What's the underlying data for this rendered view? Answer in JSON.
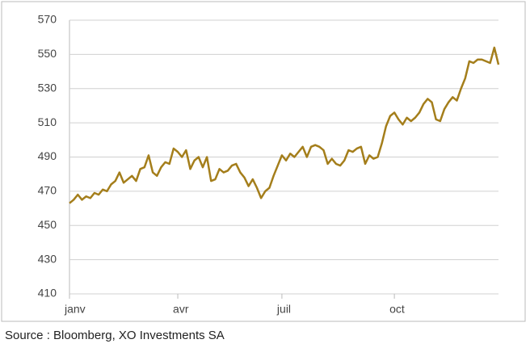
{
  "chart_data": {
    "type": "line",
    "source": "Source : Bloomberg, XO Investments SA",
    "categories": [
      "janv",
      null,
      null,
      null,
      null,
      null,
      null,
      null,
      null,
      null,
      null,
      null,
      null,
      null,
      null,
      null,
      null,
      null,
      null,
      null,
      null,
      null,
      null,
      null,
      null,
      null,
      "avr",
      null,
      null,
      null,
      null,
      null,
      null,
      null,
      null,
      null,
      null,
      null,
      null,
      null,
      null,
      null,
      null,
      null,
      null,
      null,
      null,
      null,
      null,
      null,
      null,
      "juil",
      null,
      null,
      null,
      null,
      null,
      null,
      null,
      null,
      null,
      null,
      null,
      null,
      null,
      null,
      null,
      null,
      null,
      null,
      null,
      null,
      null,
      null,
      null,
      null,
      null,
      null,
      "oct",
      null,
      null,
      null,
      null,
      null,
      null,
      null,
      null,
      null,
      null,
      null,
      null,
      null,
      null,
      null,
      null,
      null,
      null,
      null,
      null,
      null,
      null,
      null,
      null,
      null
    ],
    "values": [
      463,
      465,
      468,
      465,
      467,
      466,
      469,
      468,
      471,
      470,
      474,
      476,
      481,
      475,
      477,
      479,
      476,
      483,
      484,
      491,
      481,
      479,
      484,
      487,
      486,
      495,
      493,
      490,
      494,
      483,
      488,
      490,
      484,
      490,
      476,
      477,
      483,
      481,
      482,
      485,
      486,
      481,
      478,
      473,
      477,
      472,
      466,
      470,
      472,
      479,
      485,
      491,
      488,
      492,
      490,
      493,
      496,
      490,
      496,
      497,
      496,
      494,
      486,
      489,
      486,
      485,
      488,
      494,
      493,
      495,
      496,
      486,
      491,
      489,
      490,
      498,
      508,
      514,
      516,
      512,
      509,
      513,
      511,
      513,
      516,
      521,
      524,
      522,
      512,
      511,
      518,
      522,
      525,
      523,
      530,
      536,
      546,
      545,
      547,
      547,
      546,
      545,
      554,
      544
    ],
    "color": "#a47e1b",
    "ylim": [
      410,
      570
    ],
    "yticks": [
      410,
      430,
      450,
      470,
      490,
      510,
      530,
      550,
      570
    ],
    "grid": true
  }
}
